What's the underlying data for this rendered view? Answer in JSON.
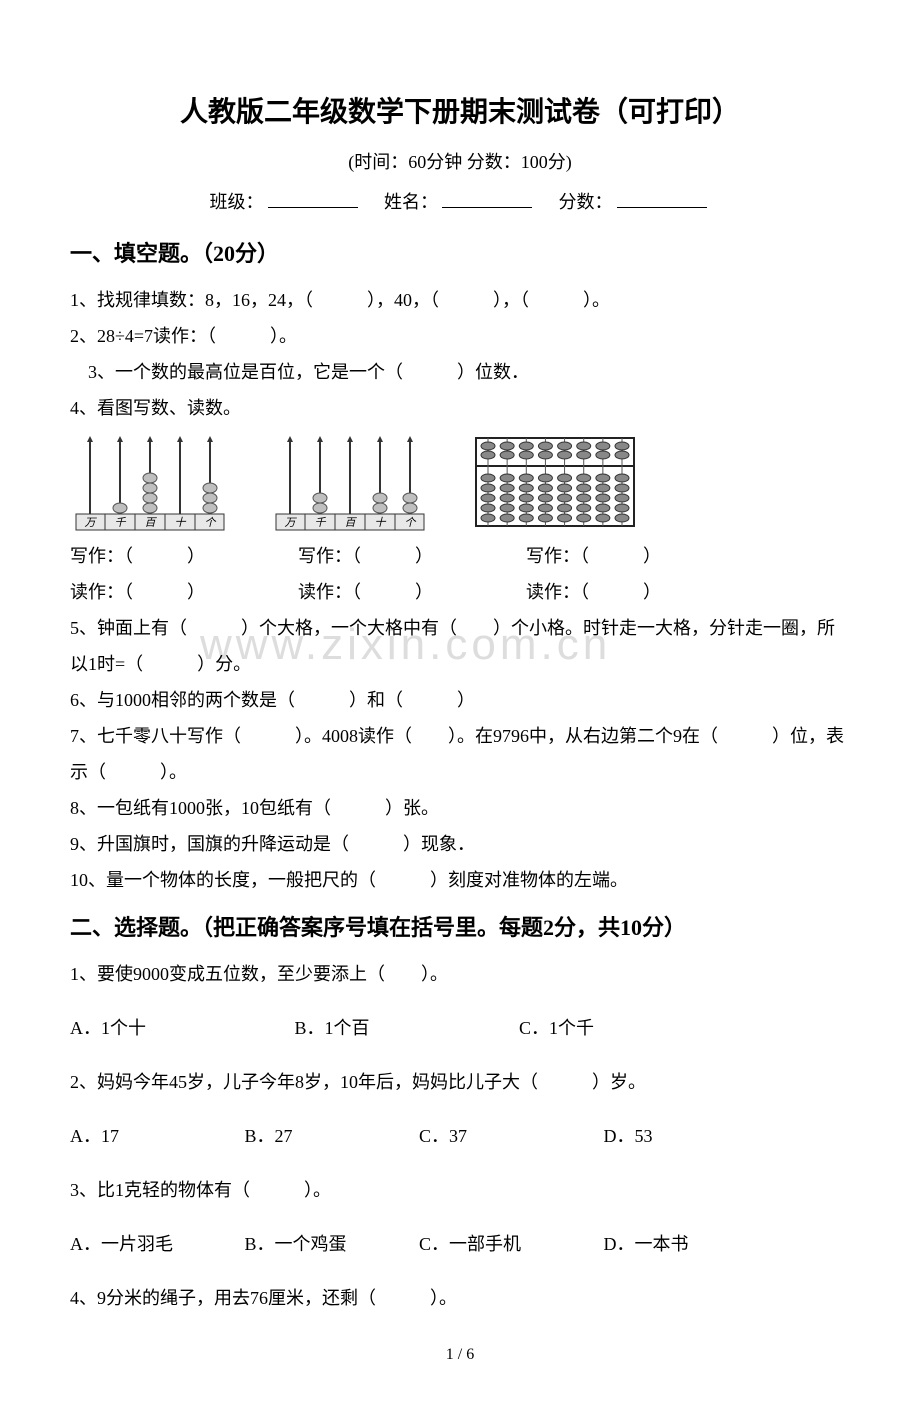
{
  "title": "人教版二年级数学下册期末测试卷（可打印）",
  "subtitle": "(时间：60分钟   分数：100分)",
  "info": {
    "class_label": "班级：",
    "name_label": "姓名：",
    "score_label": "分数："
  },
  "section1": {
    "heading": "一、填空题。（20分）",
    "q1": "1、找规律填数：8，16，24，（　　　），40，（　　　），（　　　）。",
    "q2": "2、28÷4=7读作：（　　　）。",
    "q3": "　3、一个数的最高位是百位，它是一个（　　　）位数．",
    "q4": "4、看图写数、读数。",
    "write_label": "写作：（　　　）",
    "read_label": "读作：（　　　）",
    "q5": "5、钟面上有（　　　）个大格，一个大格中有（　　）个小格。时针走一大格，分针走一圈，所以1时=（　　　）分。",
    "q6": "6、与1000相邻的两个数是（　　　）和（　　　）",
    "q7": "7、七千零八十写作（　　　）。4008读作（　　）。在9796中，从右边第二个9在（　　　）位，表示（　　　）。",
    "q8": "8、一包纸有1000张，10包纸有（　　　）张。",
    "q9": "9、升国旗时，国旗的升降运动是（　　　）现象．",
    "q10": "10、量一个物体的长度，一般把尺的（　　　）刻度对准物体的左端。"
  },
  "section2": {
    "heading": "二、选择题。（把正确答案序号填在括号里。每题2分，共10分）",
    "q1": "1、要使9000变成五位数，至少要添上（　　）。",
    "q1_opts": {
      "a": "A．1个十",
      "b": "B．1个百",
      "c": "C．1个千"
    },
    "q2": "2、妈妈今年45岁，儿子今年8岁，10年后，妈妈比儿子大（　　　）岁。",
    "q2_opts": {
      "a": "A．17",
      "b": "B．27",
      "c": "C．37",
      "d": "D．53"
    },
    "q3": "3、比1克轻的物体有（　　　）。",
    "q3_opts": {
      "a": "A．一片羽毛",
      "b": "B．一个鸡蛋",
      "c": "C．一部手机",
      "d": "D．一本书"
    },
    "q4": "4、9分米的绳子，用去76厘米，还剩（　　　）。"
  },
  "footer": "1 / 6",
  "watermark": "www.zixin.com.cn",
  "abacus_labels": [
    "万",
    "千",
    "百",
    "十",
    "个"
  ],
  "colors": {
    "text": "#000000",
    "bg": "#ffffff",
    "watermark": "#dddddd",
    "bead": "#bfbfbf",
    "bead_stroke": "#555555",
    "rod": "#333333"
  }
}
